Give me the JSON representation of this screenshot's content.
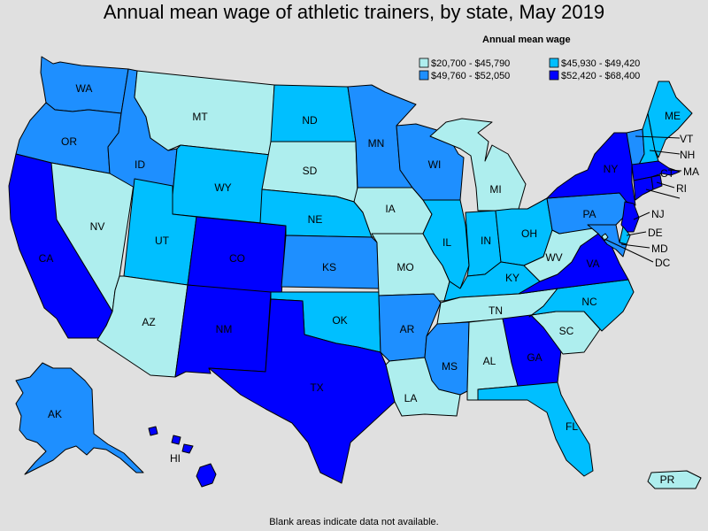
{
  "title": "Annual mean wage of athletic trainers, by state, May 2019",
  "footnote": "Blank areas indicate data not available.",
  "legend": {
    "title": "Annual mean wage",
    "bins": [
      {
        "range": "$20,700 - $45,790",
        "color": "#aeeeee"
      },
      {
        "range": "$45,930 - $49,420",
        "color": "#00bfff"
      },
      {
        "range": "$49,760 - $52,050",
        "color": "#1e8fff"
      },
      {
        "range": "$52,420 - $68,400",
        "color": "#0000ff"
      }
    ]
  },
  "states": {
    "WA": {
      "label": "WA",
      "bin": 2
    },
    "OR": {
      "label": "OR",
      "bin": 2
    },
    "CA": {
      "label": "CA",
      "bin": 3
    },
    "NV": {
      "label": "NV",
      "bin": 0
    },
    "ID": {
      "label": "ID",
      "bin": 2
    },
    "MT": {
      "label": "MT",
      "bin": 0
    },
    "WY": {
      "label": "WY",
      "bin": 1
    },
    "UT": {
      "label": "UT",
      "bin": 1
    },
    "AZ": {
      "label": "AZ",
      "bin": 0
    },
    "CO": {
      "label": "CO",
      "bin": 3
    },
    "NM": {
      "label": "NM",
      "bin": 3
    },
    "ND": {
      "label": "ND",
      "bin": 1
    },
    "SD": {
      "label": "SD",
      "bin": 0
    },
    "NE": {
      "label": "NE",
      "bin": 1
    },
    "KS": {
      "label": "KS",
      "bin": 2
    },
    "OK": {
      "label": "OK",
      "bin": 1
    },
    "TX": {
      "label": "TX",
      "bin": 3
    },
    "MN": {
      "label": "MN",
      "bin": 2
    },
    "IA": {
      "label": "IA",
      "bin": 0
    },
    "MO": {
      "label": "MO",
      "bin": 0
    },
    "AR": {
      "label": "AR",
      "bin": 2
    },
    "LA": {
      "label": "LA",
      "bin": 0
    },
    "WI": {
      "label": "WI",
      "bin": 2
    },
    "IL": {
      "label": "IL",
      "bin": 1
    },
    "MI": {
      "label": "MI",
      "bin": 0
    },
    "IN": {
      "label": "IN",
      "bin": 1
    },
    "OH": {
      "label": "OH",
      "bin": 1
    },
    "KY": {
      "label": "KY",
      "bin": 1
    },
    "TN": {
      "label": "TN",
      "bin": 0
    },
    "MS": {
      "label": "MS",
      "bin": 2
    },
    "AL": {
      "label": "AL",
      "bin": 0
    },
    "GA": {
      "label": "GA",
      "bin": 3
    },
    "FL": {
      "label": "FL",
      "bin": 1
    },
    "SC": {
      "label": "SC",
      "bin": 0
    },
    "NC": {
      "label": "NC",
      "bin": 1
    },
    "VA": {
      "label": "VA",
      "bin": 3
    },
    "WV": {
      "label": "WV",
      "bin": 0
    },
    "PA": {
      "label": "PA",
      "bin": 2
    },
    "NY": {
      "label": "NY",
      "bin": 3
    },
    "ME": {
      "label": "ME",
      "bin": 1
    },
    "VT": {
      "label": "VT",
      "bin": 2
    },
    "NH": {
      "label": "NH",
      "bin": 1
    },
    "MA": {
      "label": "MA",
      "bin": 3
    },
    "RI": {
      "label": "RI",
      "bin": 3
    },
    "CT": {
      "label": "CT",
      "bin": 3
    },
    "NJ": {
      "label": "NJ",
      "bin": 3
    },
    "DE": {
      "label": "DE",
      "bin": 1
    },
    "MD": {
      "label": "MD",
      "bin": 2
    },
    "DC": {
      "label": "DC",
      "bin": 0
    },
    "AK": {
      "label": "AK",
      "bin": 2
    },
    "HI": {
      "label": "HI",
      "bin": 3
    },
    "PR": {
      "label": "PR",
      "bin": 0
    }
  }
}
